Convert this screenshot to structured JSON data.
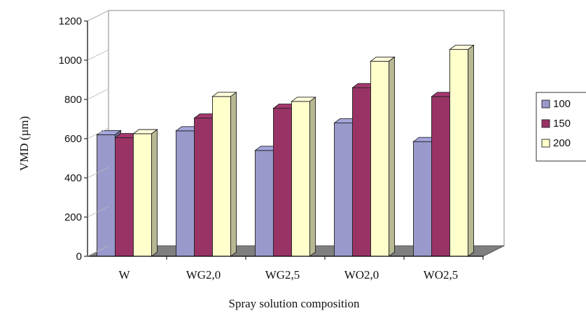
{
  "chart_data": {
    "type": "bar",
    "title": "",
    "xlabel": "Spray solution composition",
    "ylabel": "VMD (µm)",
    "ylim": [
      0,
      1200
    ],
    "yticks": [
      "0",
      "200",
      "400",
      "600",
      "800",
      "1000",
      "1200"
    ],
    "categories": [
      "W",
      "WG2,0",
      "WG2,5",
      "WO2,0",
      "WO2,5"
    ],
    "series": [
      {
        "name": "100",
        "values": [
          620,
          640,
          540,
          680,
          585
        ],
        "color": "#9999cc"
      },
      {
        "name": "150",
        "values": [
          605,
          705,
          755,
          860,
          815
        ],
        "color": "#993366"
      },
      {
        "name": "200",
        "values": [
          625,
          815,
          790,
          995,
          1055
        ],
        "color": "#ffffcc"
      }
    ],
    "grid": false,
    "legend_position": "right",
    "style": "3d-clustered"
  }
}
